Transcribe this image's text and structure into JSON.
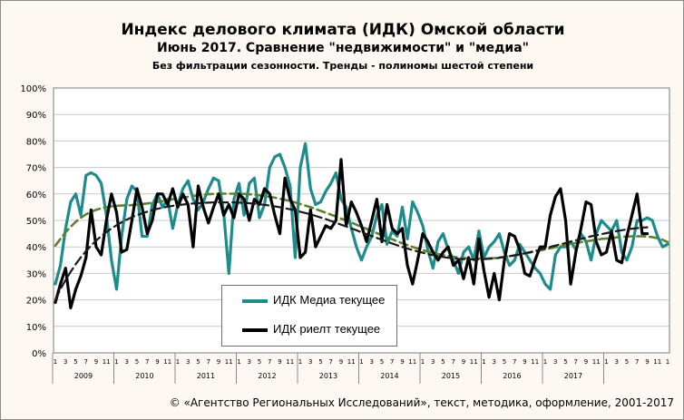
{
  "title": "Индекс делового климата (ИДК) Омской области",
  "subtitle": "Июнь 2017. Сравнение \"недвижимости\"  и \"медиа\"",
  "subtitle2": "Без фильтрации  сезонности. Тренды  - полиномы  шестой степени",
  "footer": "© «Агентство Региональных Исследований», текст, методика, оформление, 2001-2017",
  "colors": {
    "media": "#1e8c8c",
    "realty": "#000000",
    "media_trend": "#5a8232",
    "realty_trend": "#1a1a1a",
    "grid": "#c8c8c8"
  },
  "chart_data": {
    "type": "line",
    "y_tick_labels": [
      "0%",
      "10%",
      "20%",
      "30%",
      "40%",
      "50%",
      "60%",
      "70%",
      "80%",
      "90%",
      "100%"
    ],
    "ylim": [
      0,
      100
    ],
    "grid": true,
    "legend_position": "lower-left",
    "month_ticks": [
      "1",
      "3",
      "5",
      "7",
      "9",
      "11"
    ],
    "years": [
      "2009",
      "2010",
      "2011",
      "2012",
      "2013",
      "2014",
      "2015",
      "2016",
      "2017"
    ],
    "series": [
      {
        "name": "ИДК Медиа текущее",
        "role": "current",
        "values": [
          26,
          33,
          47,
          57,
          60,
          52,
          67,
          68,
          67,
          64,
          52,
          35,
          24,
          44,
          58,
          63,
          61,
          44,
          44,
          56,
          60,
          55,
          58,
          47,
          56,
          62,
          65,
          58,
          54,
          57,
          62,
          66,
          65,
          53,
          30,
          58,
          64,
          52,
          64,
          66,
          51,
          56,
          70,
          74,
          75,
          70,
          63,
          36,
          70,
          79,
          62,
          56,
          57,
          61,
          64,
          68,
          58,
          55,
          47,
          40,
          35,
          40,
          44,
          52,
          56,
          41,
          46,
          44,
          55,
          43,
          57,
          53,
          48,
          39,
          32,
          42,
          45,
          39,
          35,
          30,
          38,
          40,
          35,
          46,
          36,
          40,
          42,
          45,
          38,
          33,
          35,
          41,
          38,
          35,
          32,
          30,
          26,
          24,
          37,
          40,
          40,
          42,
          39,
          45,
          42,
          35,
          45,
          50,
          48,
          46,
          50,
          38,
          35,
          40,
          50,
          50,
          51,
          50,
          44,
          40,
          41
        ]
      },
      {
        "name": "ИДК риелт текущее",
        "role": "current",
        "values": [
          19,
          26,
          32,
          17,
          24,
          29,
          36,
          54,
          40,
          37,
          50,
          60,
          53,
          38,
          39,
          50,
          62,
          55,
          45,
          50,
          60,
          60,
          56,
          62,
          55,
          60,
          56,
          40,
          63,
          55,
          49,
          55,
          60,
          52,
          56,
          51,
          60,
          58,
          50,
          58,
          56,
          62,
          60,
          52,
          45,
          66,
          58,
          54,
          36,
          38,
          54,
          40,
          44,
          48,
          47,
          50,
          73,
          48,
          57,
          53,
          48,
          42,
          50,
          58,
          42,
          56,
          47,
          45,
          47,
          33,
          26,
          35,
          45,
          42,
          38,
          35,
          38,
          40,
          33,
          35,
          28,
          36,
          26,
          43,
          31,
          21,
          30,
          20,
          35,
          45,
          44,
          39,
          30,
          29,
          35,
          40,
          40,
          52,
          59,
          62,
          50,
          26,
          38,
          47,
          57,
          56,
          42,
          37,
          38,
          46,
          35,
          34,
          44,
          52,
          60,
          45,
          45
        ]
      },
      {
        "name": "",
        "role": "trend",
        "of": "ИДК Медиа текущее",
        "values": [
          40.5,
          43,
          45.5,
          47.6,
          49.5,
          51,
          52.3,
          53.3,
          54,
          54.6,
          55,
          55.3,
          55.5,
          55.6,
          55.7,
          55.8,
          56,
          56.2,
          56.4,
          56.7,
          57,
          57.3,
          57.6,
          58,
          58.3,
          58.6,
          58.9,
          59.2,
          59.5,
          59.7,
          59.9,
          60,
          60.1,
          60.1,
          60.1,
          60.1,
          60.1,
          60,
          59.9,
          59.7,
          59.5,
          59.2,
          58.9,
          58.6,
          58.2,
          57.8,
          57.3,
          56.8,
          56.2,
          55.6,
          55,
          54.3,
          53.6,
          52.9,
          52.2,
          51.5,
          50.7,
          50,
          49.2,
          48.4,
          47.6,
          46.8,
          46,
          45.2,
          44.4,
          43.6,
          42.9,
          42.1,
          41.4,
          40.7,
          40,
          39.4,
          38.8,
          38.3,
          37.8,
          37.3,
          36.9,
          36.6,
          36.3,
          36,
          35.8,
          35.7,
          35.6,
          35.6,
          35.6,
          35.7,
          35.8,
          36,
          36.2,
          36.5,
          36.8,
          37.1,
          37.5,
          37.9,
          38.3,
          38.7,
          39.1,
          39.5,
          39.9,
          40.3,
          40.7,
          41.1,
          41.5,
          41.8,
          42.1,
          42.4,
          42.7,
          43,
          43.2,
          43.4,
          43.6,
          43.8,
          43.9,
          44,
          44,
          44,
          43.9,
          43.7,
          43.3,
          42.7,
          41.8
        ]
      },
      {
        "name": "",
        "role": "trend",
        "of": "ИДК риелт текущее",
        "values": [
          20,
          24,
          27.5,
          30.6,
          33.5,
          36.1,
          38.4,
          40.5,
          42.4,
          44.1,
          45.6,
          47,
          48.2,
          49.3,
          50.3,
          51.2,
          52,
          52.7,
          53.3,
          53.9,
          54.4,
          54.8,
          55.2,
          55.5,
          55.8,
          56,
          56.2,
          56.4,
          56.5,
          56.6,
          56.7,
          56.8,
          56.8,
          56.8,
          56.8,
          56.8,
          56.7,
          56.6,
          56.5,
          56.3,
          56.1,
          55.9,
          55.6,
          55.3,
          55,
          54.6,
          54.2,
          53.8,
          53.3,
          52.8,
          52.3,
          51.7,
          51.1,
          50.5,
          49.8,
          49.1,
          48.4,
          47.7,
          47,
          46.3,
          45.5,
          44.8,
          44.1,
          43.4,
          42.7,
          42,
          41.3,
          40.6,
          40,
          39.4,
          38.8,
          38.3,
          37.8,
          37.3,
          36.9,
          36.5,
          36.2,
          35.9,
          35.7,
          35.5,
          35.4,
          35.3,
          35.3,
          35.3,
          35.4,
          35.5,
          35.7,
          35.9,
          36.2,
          36.5,
          36.8,
          37.2,
          37.6,
          38,
          38.5,
          39,
          39.5,
          40,
          40.5,
          41,
          41.5,
          42,
          42.5,
          43,
          43.5,
          44,
          44.4,
          44.8,
          45.2,
          45.6,
          46,
          46.3,
          46.6,
          46.9,
          47.1,
          47.3,
          47.4
        ]
      }
    ]
  }
}
